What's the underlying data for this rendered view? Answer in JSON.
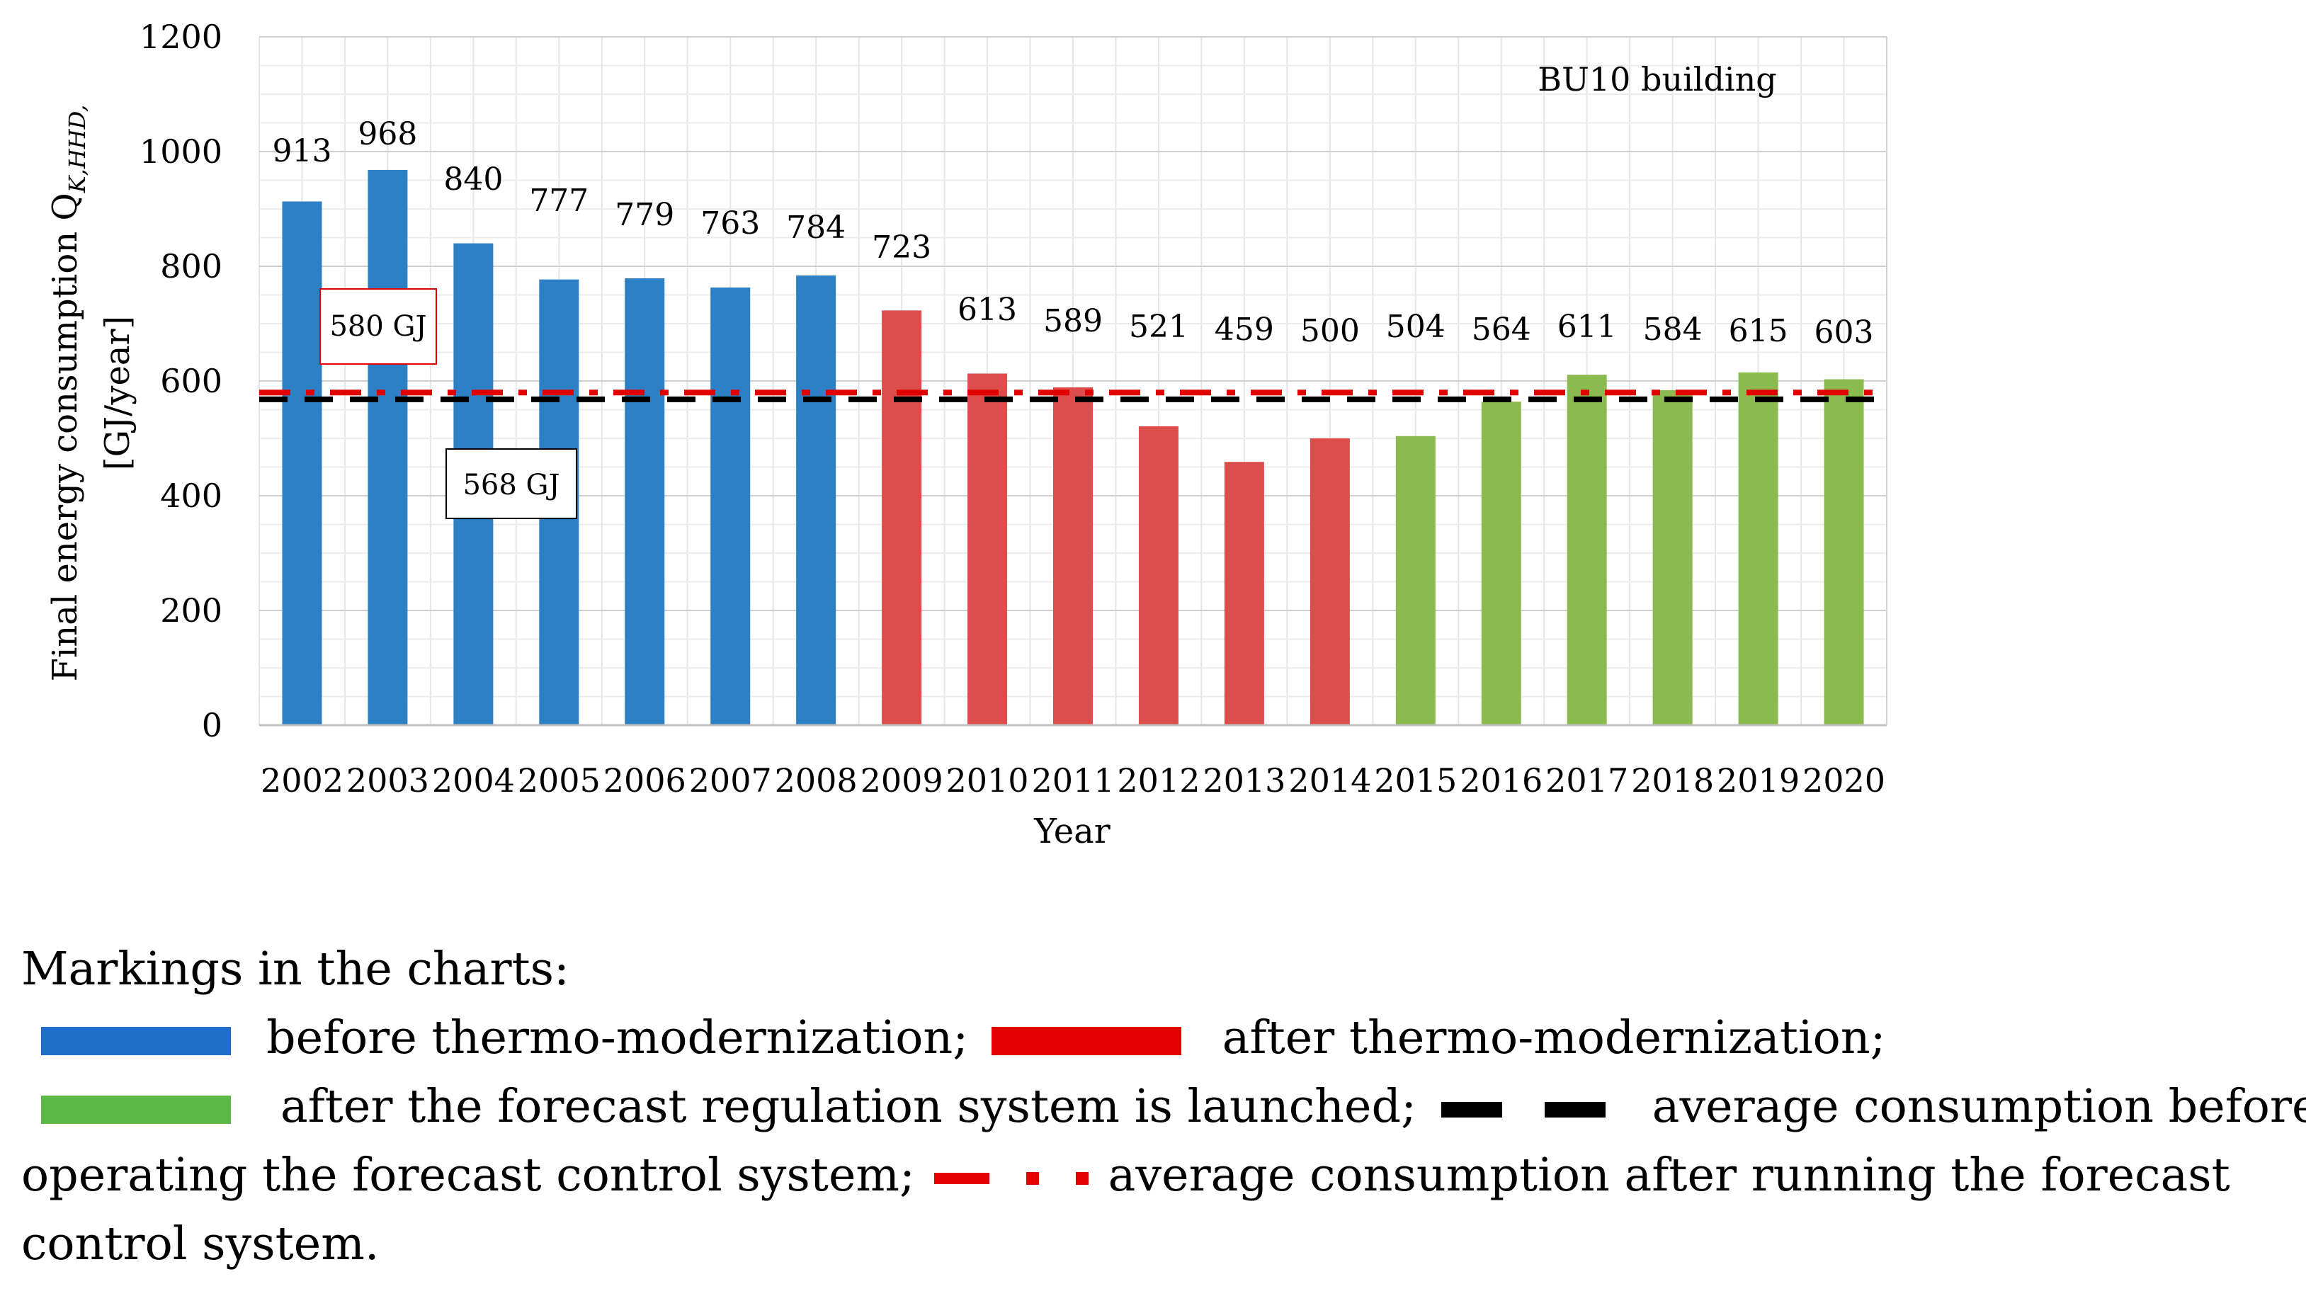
{
  "chart_data": {
    "type": "bar",
    "annotation_title": "BU10 building",
    "xlabel": "Year",
    "ylabel_main": "Final energy consumption Q",
    "ylabel_sub": "K,HHD,",
    "ylabel_unit": "[GJ/year]",
    "ylim": [
      0,
      1200
    ],
    "yticks": [
      0,
      200,
      400,
      600,
      800,
      1000,
      1200
    ],
    "grid": true,
    "categories": [
      "2002",
      "2003",
      "2004",
      "2005",
      "2006",
      "2007",
      "2008",
      "2009",
      "2010",
      "2011",
      "2012",
      "2013",
      "2014",
      "2015",
      "2016",
      "2017",
      "2018",
      "2019",
      "2020"
    ],
    "series": [
      {
        "name": "before thermo-modernization",
        "color": "#2C80C3",
        "x": [
          "2002",
          "2003",
          "2004",
          "2005",
          "2006",
          "2007",
          "2008"
        ],
        "values": [
          913,
          968,
          840,
          777,
          779,
          763,
          784
        ]
      },
      {
        "name": "after thermo-modernization",
        "color": "#DC4D4B",
        "x": [
          "2009",
          "2010",
          "2011",
          "2012",
          "2013",
          "2014"
        ],
        "values": [
          723,
          613,
          589,
          521,
          459,
          500
        ]
      },
      {
        "name": "after the forecast regulation system is launched",
        "color": "#8BBB4E",
        "x": [
          "2015",
          "2016",
          "2017",
          "2018",
          "2019",
          "2020"
        ],
        "values": [
          504,
          564,
          611,
          584,
          615,
          603
        ]
      }
    ],
    "reference_lines": [
      {
        "name": "average consumption after running the forecast control system",
        "value": 580,
        "label": "580 GJ",
        "color": "#E00000",
        "style": "dash-dot"
      },
      {
        "name": "average consumption before operating the forecast control system",
        "value": 568,
        "label": "568 GJ",
        "color": "#000000",
        "style": "dashed"
      }
    ]
  },
  "legend": {
    "heading": "Markings in the charts:",
    "blue_label": "before thermo-modernization;",
    "red_label": "after thermo-modernization;",
    "green_label": "after the forecast regulation system is launched;",
    "black_label": "average consumption before",
    "black_label_cont": "operating the forecast control system;",
    "reddash_label": "average consumption after running the forecast",
    "reddash_label_cont": "control system.",
    "colors": {
      "blue": "#1F6FCA",
      "red": "#E30000",
      "green": "#5CB846",
      "black": "#000000"
    }
  }
}
